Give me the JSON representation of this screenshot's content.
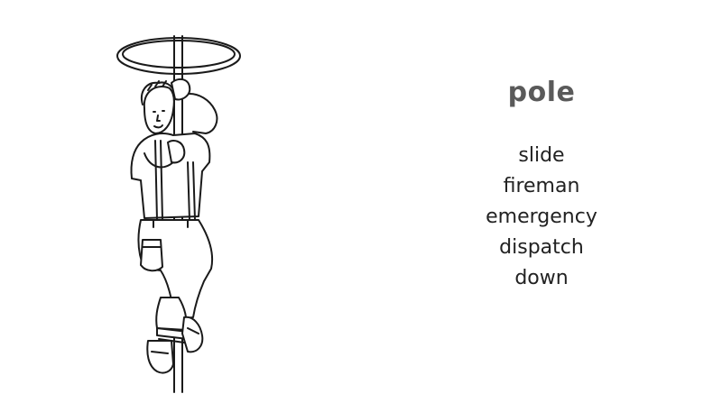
{
  "card": {
    "headword": "pole",
    "related_words": [
      "slide",
      "fireman",
      "emergency",
      "dispatch",
      "down"
    ],
    "colors": {
      "headword": "#5a5a5a",
      "related": "#222222",
      "line_art": "#1a1a1a",
      "background": "#ffffff"
    }
  },
  "illustration": {
    "subject": "fireman-sliding-down-pole",
    "style": "black-and-white line drawing"
  }
}
